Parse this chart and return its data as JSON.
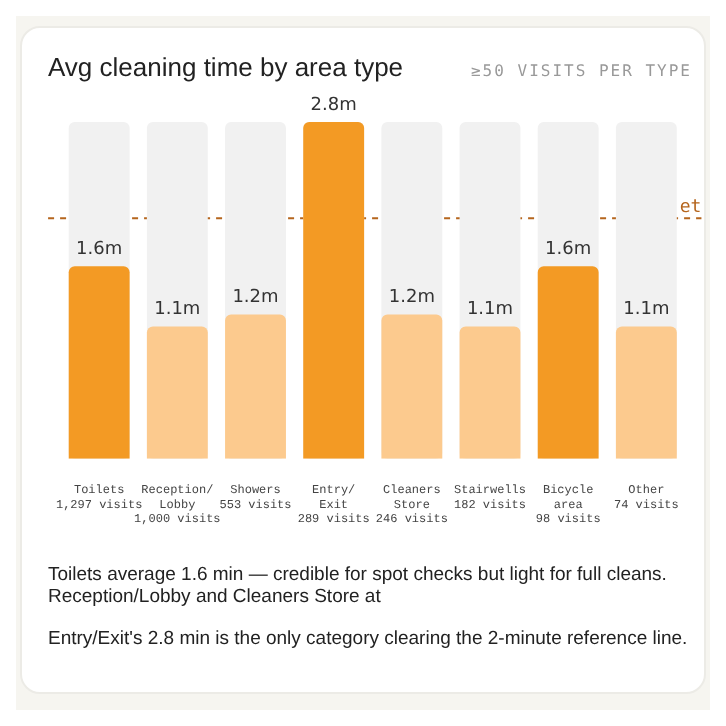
{
  "chart_data": {
    "type": "bar",
    "title": "Avg cleaning time by area type",
    "subtitle": "≥50 VISITS PER TYPE",
    "categories": [
      "Toilets\n1,297 visits",
      "Reception/\nLobby\n1,000 visits",
      "Showers\n553 visits",
      "Entry/\nExit\n289 visits",
      "Cleaners\nStore\n246 visits",
      "Stairwells\n182 visits",
      "Bicycle\narea\n98 visits",
      "Other\n74 visits"
    ],
    "values": [
      1.6,
      1.1,
      1.2,
      2.8,
      1.2,
      1.1,
      1.6,
      1.1
    ],
    "colors": [
      "#f39a24",
      "#fcca8e",
      "#fcca8e",
      "#f39a24",
      "#fcca8e",
      "#fcca8e",
      "#f39a24",
      "#fcca8e"
    ],
    "value_labels": [
      "1.6m",
      "1.1m",
      "1.2m",
      "2.8m",
      "1.2m",
      "1.1m",
      "1.6m",
      "1.1m"
    ],
    "ref_lines": [
      {
        "axis": "y",
        "value": 2,
        "label": "et",
        "color": "#b5651d",
        "line_style": "dashed"
      }
    ],
    "annotations": [
      "Toilets average 1.6 min — credible for spot checks but light for full cleans. Reception/Lobby and Cleaners Store at",
      "Entry/Exit's 2.8 min is the only category clearing the 2-minute reference line."
    ],
    "grid": false,
    "legend": false
  }
}
